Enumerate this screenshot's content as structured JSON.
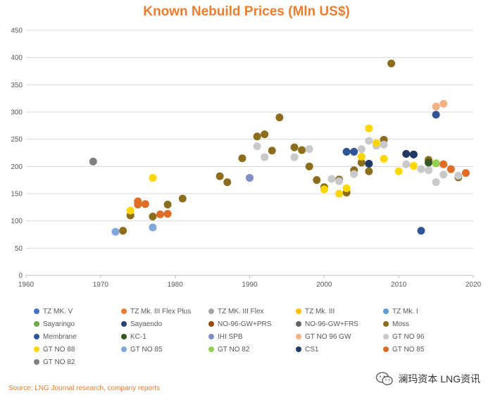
{
  "chart_data": {
    "type": "scatter",
    "title": "Known Nebuild Prices (Mln US$)",
    "xlabel": "",
    "ylabel": "",
    "xlim": [
      1960,
      2020
    ],
    "ylim": [
      0,
      450
    ],
    "xticks": [
      1960,
      1970,
      1980,
      1990,
      2000,
      2010,
      2020
    ],
    "yticks": [
      0,
      50,
      100,
      150,
      200,
      250,
      300,
      350,
      400,
      450
    ],
    "grid": "horizontal",
    "legend_position": "bottom",
    "series": [
      {
        "name": "TZ MK. V",
        "color": "#4472C4",
        "points": []
      },
      {
        "name": "TZ Mk. III Flex Plus",
        "color": "#ED7D31",
        "points": []
      },
      {
        "name": "TZ MK. III Flex",
        "color": "#A5A5A5",
        "points": []
      },
      {
        "name": "TZ Mk. III",
        "color": "#FFC000",
        "points": []
      },
      {
        "name": "TZ Mk. I",
        "color": "#5B9BD5",
        "points": []
      },
      {
        "name": "Sayaringo",
        "color": "#70AD47",
        "points": []
      },
      {
        "name": "Sayaendo",
        "color": "#264478",
        "points": []
      },
      {
        "name": "NO-96-GW+PRS",
        "color": "#9E480E",
        "points": []
      },
      {
        "name": "NO-96-GW+FRS",
        "color": "#636363",
        "points": []
      },
      {
        "name": "Moss",
        "color": "#8B6D1B",
        "points": [
          [
            1973,
            82
          ],
          [
            1974,
            110
          ],
          [
            1977,
            108
          ],
          [
            1979,
            130
          ],
          [
            1981,
            141
          ],
          [
            1986,
            182
          ],
          [
            1987,
            171
          ],
          [
            1989,
            215
          ],
          [
            1991,
            255
          ],
          [
            1992,
            259
          ],
          [
            1993,
            229
          ],
          [
            1994,
            290
          ],
          [
            1996,
            235
          ],
          [
            1997,
            230
          ],
          [
            1998,
            200
          ],
          [
            1999,
            175
          ],
          [
            2000,
            162
          ],
          [
            2002,
            176
          ],
          [
            2003,
            152
          ],
          [
            2004,
            193
          ],
          [
            2005,
            207
          ],
          [
            2006,
            191
          ],
          [
            2008,
            249
          ],
          [
            2009,
            389
          ],
          [
            2014,
            212
          ],
          [
            2018,
            180
          ]
        ]
      },
      {
        "name": "Membrane",
        "color": "#2F5597",
        "points": [
          [
            2003,
            227
          ],
          [
            2004,
            227
          ],
          [
            2013,
            82
          ],
          [
            2015,
            295
          ]
        ]
      },
      {
        "name": "KC-1",
        "color": "#375623",
        "points": [
          [
            2014,
            207
          ]
        ]
      },
      {
        "name": "IHI SPB",
        "color": "#7F8FC6",
        "points": [
          [
            1990,
            179
          ]
        ]
      },
      {
        "name": "GT NO 96 GW",
        "color": "#F4B183",
        "points": [
          [
            2015,
            310
          ],
          [
            2016,
            315
          ]
        ]
      },
      {
        "name": "GT NO 96",
        "color": "#C9C9C9",
        "points": [
          [
            1991,
            237
          ],
          [
            1992,
            217
          ],
          [
            1996,
            217
          ],
          [
            1998,
            232
          ],
          [
            2001,
            177
          ],
          [
            2002,
            173
          ],
          [
            2004,
            186
          ],
          [
            2005,
            232
          ],
          [
            2006,
            247
          ],
          [
            2007,
            238
          ],
          [
            2008,
            240
          ],
          [
            2011,
            204
          ],
          [
            2013,
            195
          ],
          [
            2014,
            193
          ],
          [
            2015,
            171
          ],
          [
            2016,
            185
          ],
          [
            2018,
            183
          ]
        ]
      },
      {
        "name": "GT NO 88",
        "color": "#FFD700",
        "points": [
          [
            1974,
            119
          ],
          [
            1977,
            179
          ],
          [
            2000,
            158
          ],
          [
            2002,
            150
          ],
          [
            2003,
            160
          ],
          [
            2005,
            218
          ],
          [
            2006,
            270
          ],
          [
            2007,
            243
          ],
          [
            2008,
            214
          ],
          [
            2010,
            191
          ],
          [
            2012,
            201
          ]
        ]
      },
      {
        "name": "GT NO 85",
        "color": "#7FA7DB",
        "points": [
          [
            1972,
            80
          ],
          [
            1977,
            88
          ]
        ]
      },
      {
        "name": "GT NO 82",
        "color": "#92D050",
        "points": [
          [
            2015,
            206
          ]
        ]
      },
      {
        "name": "CS1",
        "color": "#203864",
        "points": [
          [
            2006,
            205
          ],
          [
            2011,
            223
          ],
          [
            2012,
            222
          ]
        ]
      },
      {
        "name": "GT NO 85",
        "color": "#E06C25",
        "points": [
          [
            1975,
            130
          ],
          [
            1975,
            136
          ],
          [
            1976,
            131
          ],
          [
            1978,
            112
          ],
          [
            1979,
            113
          ],
          [
            2016,
            204
          ],
          [
            2017,
            195
          ],
          [
            2019,
            188
          ]
        ]
      },
      {
        "name": "GT NO 82",
        "color": "#808080",
        "points": [
          [
            1969,
            209
          ]
        ]
      }
    ]
  },
  "source": "Source: LNG Journal research, company reports",
  "watermark": {
    "text": "澜玛资本 LNG资讯",
    "icon": "wechat-icon"
  }
}
